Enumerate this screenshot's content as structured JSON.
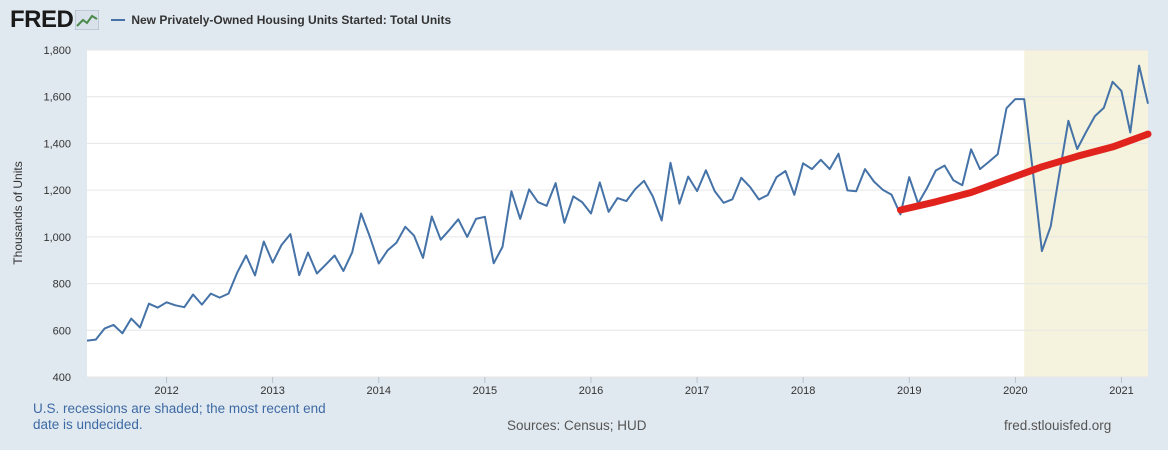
{
  "header": {
    "logo": "FRED",
    "logo_icon": "chart-line-icon",
    "legend_label": "New Privately-Owned Housing Units Started: Total Units"
  },
  "footer": {
    "recession_note": "U.S. recessions are shaded; the most recent end date is undecided.",
    "sources": "Sources: Census; HUD",
    "site": "fred.stlouisfed.org"
  },
  "colors": {
    "series": "#4572a7",
    "trend": "#e0231c",
    "recession": "#f5f3dd",
    "background": "#e1e9f0",
    "plot": "#ffffff"
  },
  "chart_data": {
    "type": "line",
    "title": "New Privately-Owned Housing Units Started: Total Units",
    "ylabel": "Thousands of Units",
    "xlabel": "",
    "ylim": [
      400,
      1800
    ],
    "xlim": [
      2011.25,
      2021.25
    ],
    "yticks": [
      400,
      600,
      800,
      1000,
      1200,
      1400,
      1600,
      1800
    ],
    "ytick_labels": [
      "400",
      "600",
      "800",
      "1,000",
      "1,200",
      "1,400",
      "1,600",
      "1,800"
    ],
    "xticks": [
      2012,
      2013,
      2014,
      2015,
      2016,
      2017,
      2018,
      2019,
      2020,
      2021
    ],
    "xtick_labels": [
      "2012",
      "2013",
      "2014",
      "2015",
      "2016",
      "2017",
      "2018",
      "2019",
      "2020",
      "2021"
    ],
    "grid": true,
    "recessions": [
      {
        "start": 2020.0833,
        "end": 2021.25
      }
    ],
    "series": [
      {
        "name": "New Privately-Owned Housing Units Started: Total Units",
        "color": "#4572a7",
        "start": 2011.25,
        "step": 0.08333,
        "values": [
          556,
          560,
          608,
          623,
          587,
          650,
          612,
          714,
          697,
          720,
          707,
          699,
          753,
          710,
          757,
          740,
          757,
          848,
          920,
          835,
          980,
          890,
          965,
          1012,
          836,
          933,
          843,
          881,
          920,
          854,
          934,
          1100,
          1000,
          886,
          942,
          975,
          1043,
          1005,
          910,
          1087,
          988,
          1030,
          1075,
          1000,
          1077,
          1086,
          887,
          957,
          1195,
          1077,
          1203,
          1149,
          1133,
          1230,
          1060,
          1173,
          1149,
          1100,
          1233,
          1107,
          1166,
          1153,
          1204,
          1240,
          1173,
          1070,
          1317,
          1142,
          1258,
          1196,
          1285,
          1196,
          1146,
          1161,
          1253,
          1213,
          1160,
          1179,
          1256,
          1282,
          1180,
          1315,
          1290,
          1330,
          1290,
          1356,
          1199,
          1195,
          1290,
          1237,
          1202,
          1180,
          1096,
          1256,
          1143,
          1208,
          1284,
          1305,
          1242,
          1221,
          1375,
          1290,
          1321,
          1354,
          1551,
          1590,
          1590,
          1276,
          939,
          1045,
          1273,
          1497,
          1376,
          1449,
          1517,
          1552,
          1664,
          1625,
          1447,
          1733,
          1570
        ]
      },
      {
        "name": "Trend",
        "color": "#e0231c",
        "x": [
          2018.917,
          2019.25,
          2019.583,
          2019.917,
          2020.25,
          2020.583,
          2020.917,
          2021.25
        ],
        "values": [
          1115,
          1150,
          1190,
          1245,
          1300,
          1345,
          1385,
          1440
        ]
      }
    ]
  }
}
